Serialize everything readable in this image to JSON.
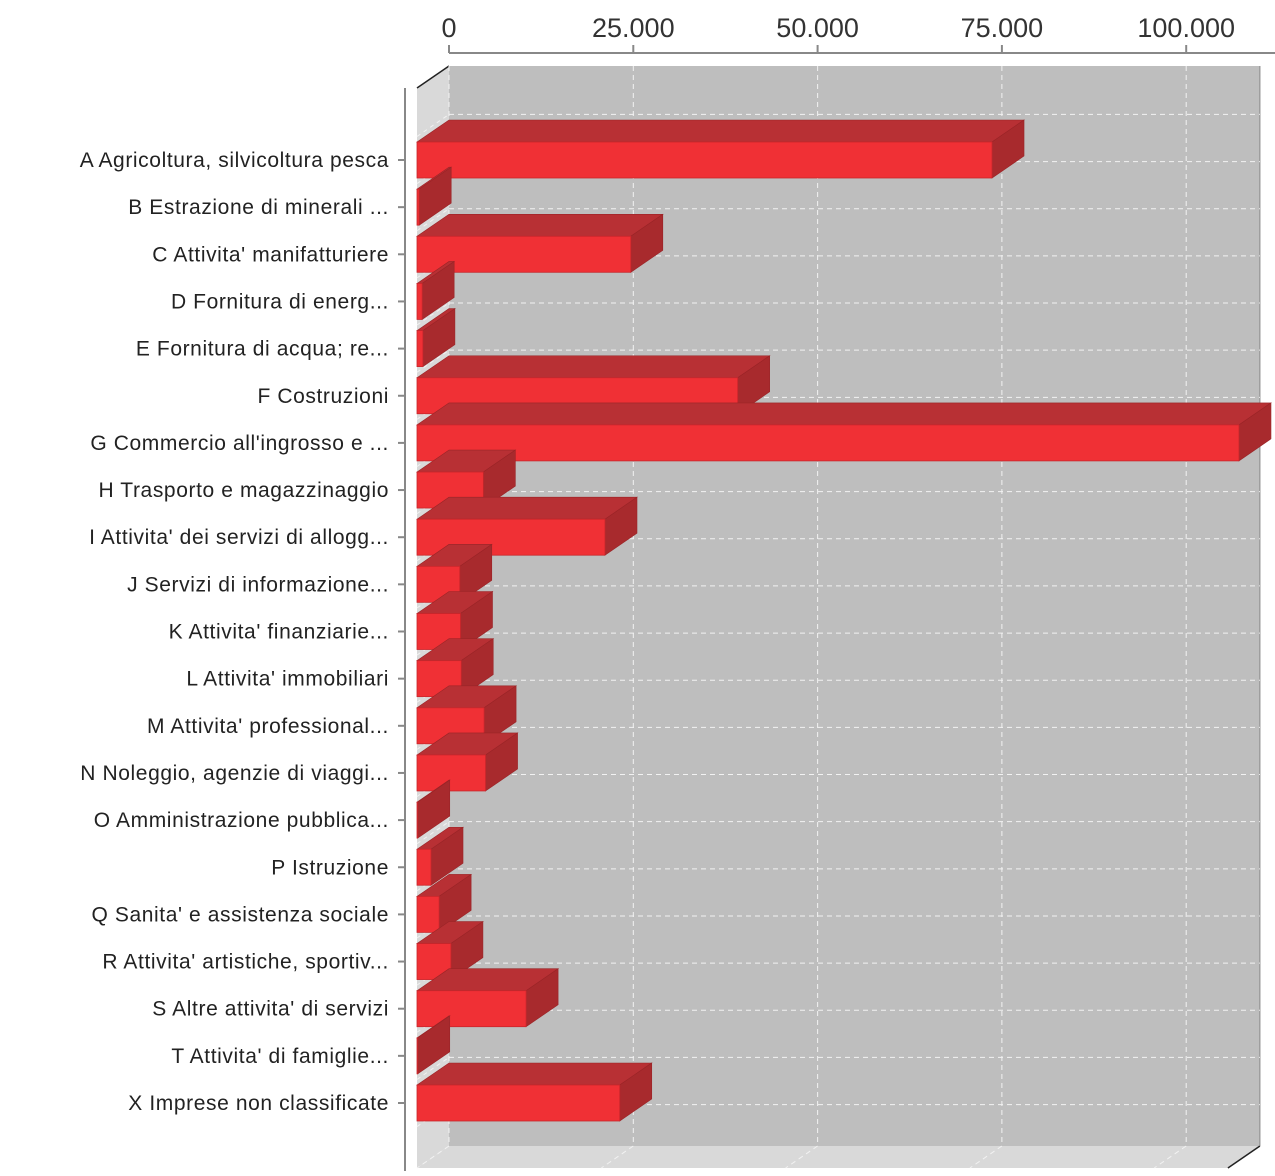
{
  "colors": {
    "bar_front": "#f03035",
    "bar_top": "#b83034",
    "bar_side": "#a82a2d",
    "plot_back": "#bebebe",
    "plot_side": "#d9d9d9",
    "plot_floor": "#d9d9d9",
    "grid": "#f2f2f2",
    "axis": "#888888"
  },
  "chart_data": {
    "type": "bar",
    "orientation": "horizontal",
    "style": "3d",
    "grid": true,
    "grid_style": "dashed",
    "xaxis_position": "top",
    "xlim": [
      0,
      110000
    ],
    "xticks": [
      0,
      25000,
      50000,
      75000,
      100000
    ],
    "xtick_labels": [
      "0",
      "25.000",
      "50.000",
      "75.000",
      "100.000"
    ],
    "categories": [
      "A Agricoltura, silvicoltura pesca",
      "B Estrazione di minerali ...",
      "C Attivita' manifatturiere",
      "D Fornitura di energ...",
      "E Fornitura di acqua; re...",
      "F Costruzioni",
      "G Commercio all'ingrosso e ...",
      "H Trasporto e magazzinaggio",
      "I Attivita' dei servizi di allogg...",
      "J Servizi di informazione...",
      "K Attivita' finanziarie...",
      "L Attivita' immobiliari",
      "M Attivita' professional...",
      "N Noleggio, agenzie di viaggi...",
      "O Amministrazione pubblica...",
      "P Istruzione",
      "Q Sanita' e assistenza sociale",
      "R Attivita' artistiche, sportiv...",
      "S Altre attivita' di servizi",
      "T Attivita' di famiglie...",
      "X Imprese non classificate"
    ],
    "values": [
      78000,
      300,
      29000,
      700,
      800,
      43500,
      111500,
      9000,
      25500,
      5800,
      5900,
      6000,
      9100,
      9300,
      100,
      1900,
      3000,
      4600,
      14800,
      100,
      27500
    ]
  }
}
